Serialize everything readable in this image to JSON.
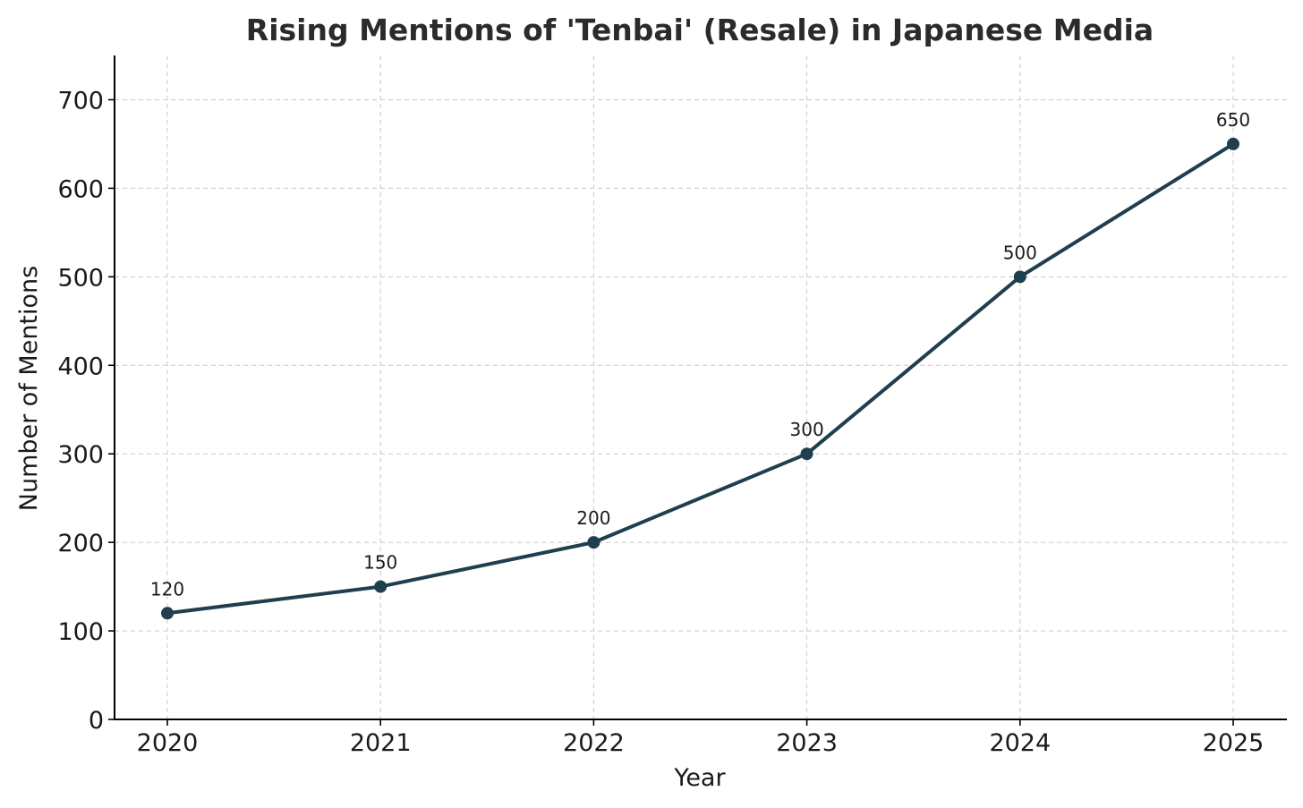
{
  "chart_data": {
    "type": "line",
    "title": "Rising Mentions of 'Tenbai' (Resale) in Japanese Media",
    "xlabel": "Year",
    "ylabel": "Number of Mentions",
    "x": [
      "2020",
      "2021",
      "2022",
      "2023",
      "2024",
      "2025"
    ],
    "series": [
      {
        "values": [
          120,
          150,
          200,
          300,
          500,
          650
        ],
        "color": "#1f3f4e",
        "marker": "circle",
        "data_labels": [
          "120",
          "150",
          "200",
          "300",
          "500",
          "650"
        ]
      }
    ],
    "ylim": [
      0,
      750
    ],
    "yticks": [
      "0",
      "100",
      "200",
      "300",
      "400",
      "500",
      "600",
      "700"
    ],
    "grid": true,
    "grid_style": "dashed",
    "legend": false
  }
}
